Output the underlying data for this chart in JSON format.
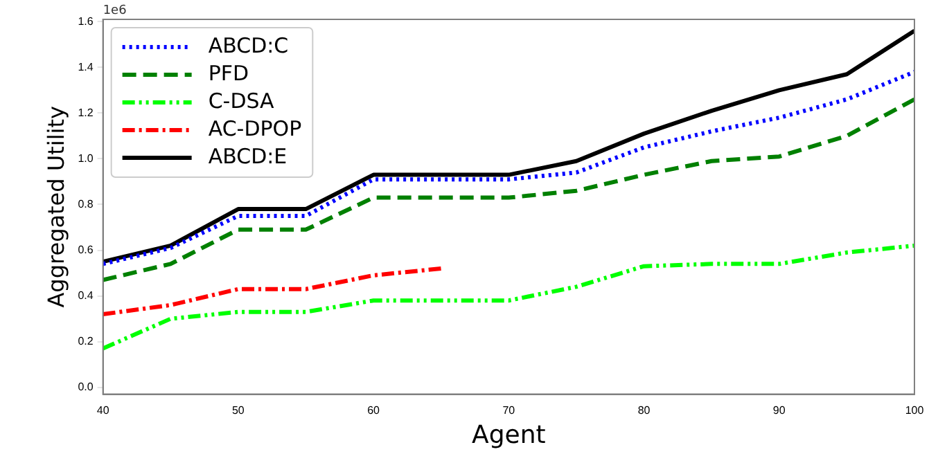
{
  "chart_data": {
    "type": "line",
    "xlabel": "Agent",
    "ylabel": "Aggregated Utility",
    "annotations": [
      "1e6"
    ],
    "x": [
      40,
      45,
      50,
      55,
      60,
      65,
      70,
      75,
      80,
      85,
      90,
      95,
      100
    ],
    "xlim": [
      40,
      100
    ],
    "xticks": [
      40,
      50,
      60,
      70,
      80,
      90,
      100
    ],
    "ylim": [
      -0.03,
      1.61
    ],
    "yticks": [
      {
        "value": 0,
        "label": "0.0"
      },
      {
        "value": 0.2,
        "label": "0.2"
      },
      {
        "value": 0.4,
        "label": "0.4"
      },
      {
        "value": 0.6,
        "label": "0.6"
      },
      {
        "value": 0.8,
        "label": "0.8"
      },
      {
        "value": 1,
        "label": "1.0"
      },
      {
        "value": 1.2,
        "label": "1.2"
      },
      {
        "value": 1.4,
        "label": "1.4"
      },
      {
        "value": 1.6,
        "label": "1.6"
      }
    ],
    "grid": false,
    "legend": "top left",
    "marker": "none",
    "series": [
      {
        "name": "ABCD:C",
        "color": "#0000ff",
        "line_style": "dotted",
        "values": [
          0.54,
          0.61,
          0.75,
          0.75,
          0.91,
          0.91,
          0.91,
          0.94,
          1.05,
          1.12,
          1.18,
          1.26,
          1.38
        ]
      },
      {
        "name": "PFD",
        "color": "#008000",
        "line_style": "dashed",
        "values": [
          0.47,
          0.54,
          0.69,
          0.69,
          0.83,
          0.83,
          0.83,
          0.86,
          0.93,
          0.99,
          1.01,
          1.1,
          1.26
        ]
      },
      {
        "name": "C-DSA",
        "color": "#00ff00",
        "line_style": "dashdotdot",
        "values": [
          0.17,
          0.3,
          0.33,
          0.33,
          0.38,
          0.38,
          0.38,
          0.44,
          0.53,
          0.54,
          0.54,
          0.59,
          0.62
        ]
      },
      {
        "name": "AC-DPOP",
        "color": "#ff0000",
        "line_style": "dashdot",
        "values": [
          0.32,
          0.36,
          0.43,
          0.43,
          0.49,
          0.52,
          null,
          null,
          null,
          null,
          null,
          null,
          null
        ]
      },
      {
        "name": "ABCD:E",
        "color": "#000000",
        "line_style": "solid",
        "values": [
          0.55,
          0.62,
          0.78,
          0.78,
          0.93,
          0.93,
          0.93,
          0.99,
          1.11,
          1.21,
          1.3,
          1.37,
          1.56
        ]
      }
    ]
  }
}
